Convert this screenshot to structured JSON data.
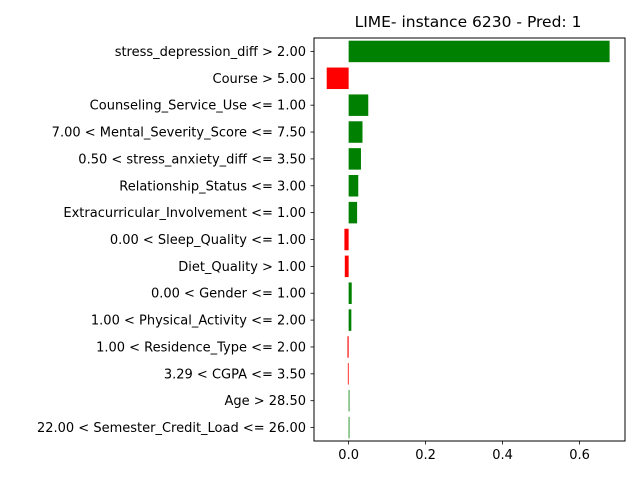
{
  "chart_data": {
    "type": "bar",
    "orientation": "horizontal",
    "title": "LIME- instance 6230 - Pred: 1",
    "xlabel": "",
    "ylabel": "",
    "xlim": [
      -0.09,
      0.718
    ],
    "xticks": [
      0.0,
      0.2,
      0.4,
      0.6
    ],
    "xtick_labels": [
      "0.0",
      "0.2",
      "0.4",
      "0.6"
    ],
    "grid": false,
    "colors": {
      "positive": "#008000",
      "negative": "#ff0000"
    },
    "categories": [
      "stress_depression_diff > 2.00",
      "Course > 5.00",
      "Counseling_Service_Use <= 1.00",
      "7.00 < Mental_Severity_Score <= 7.50",
      "0.50 < stress_anxiety_diff <= 3.50",
      "Relationship_Status <= 3.00",
      "Extracurricular_Involvement <= 1.00",
      "0.00 < Sleep_Quality <= 1.00",
      "Diet_Quality > 1.00",
      "0.00 < Gender <= 1.00",
      "1.00 < Physical_Activity <= 2.00",
      "1.00 < Residence_Type <= 2.00",
      "3.29 < CGPA <= 3.50",
      "Age > 28.50",
      "22.00 < Semester_Credit_Load <= 26.00"
    ],
    "values": [
      0.678,
      -0.057,
      0.051,
      0.036,
      0.032,
      0.025,
      0.022,
      -0.011,
      -0.01,
      0.008,
      0.007,
      -0.003,
      -0.002,
      0.002,
      0.0
    ]
  }
}
